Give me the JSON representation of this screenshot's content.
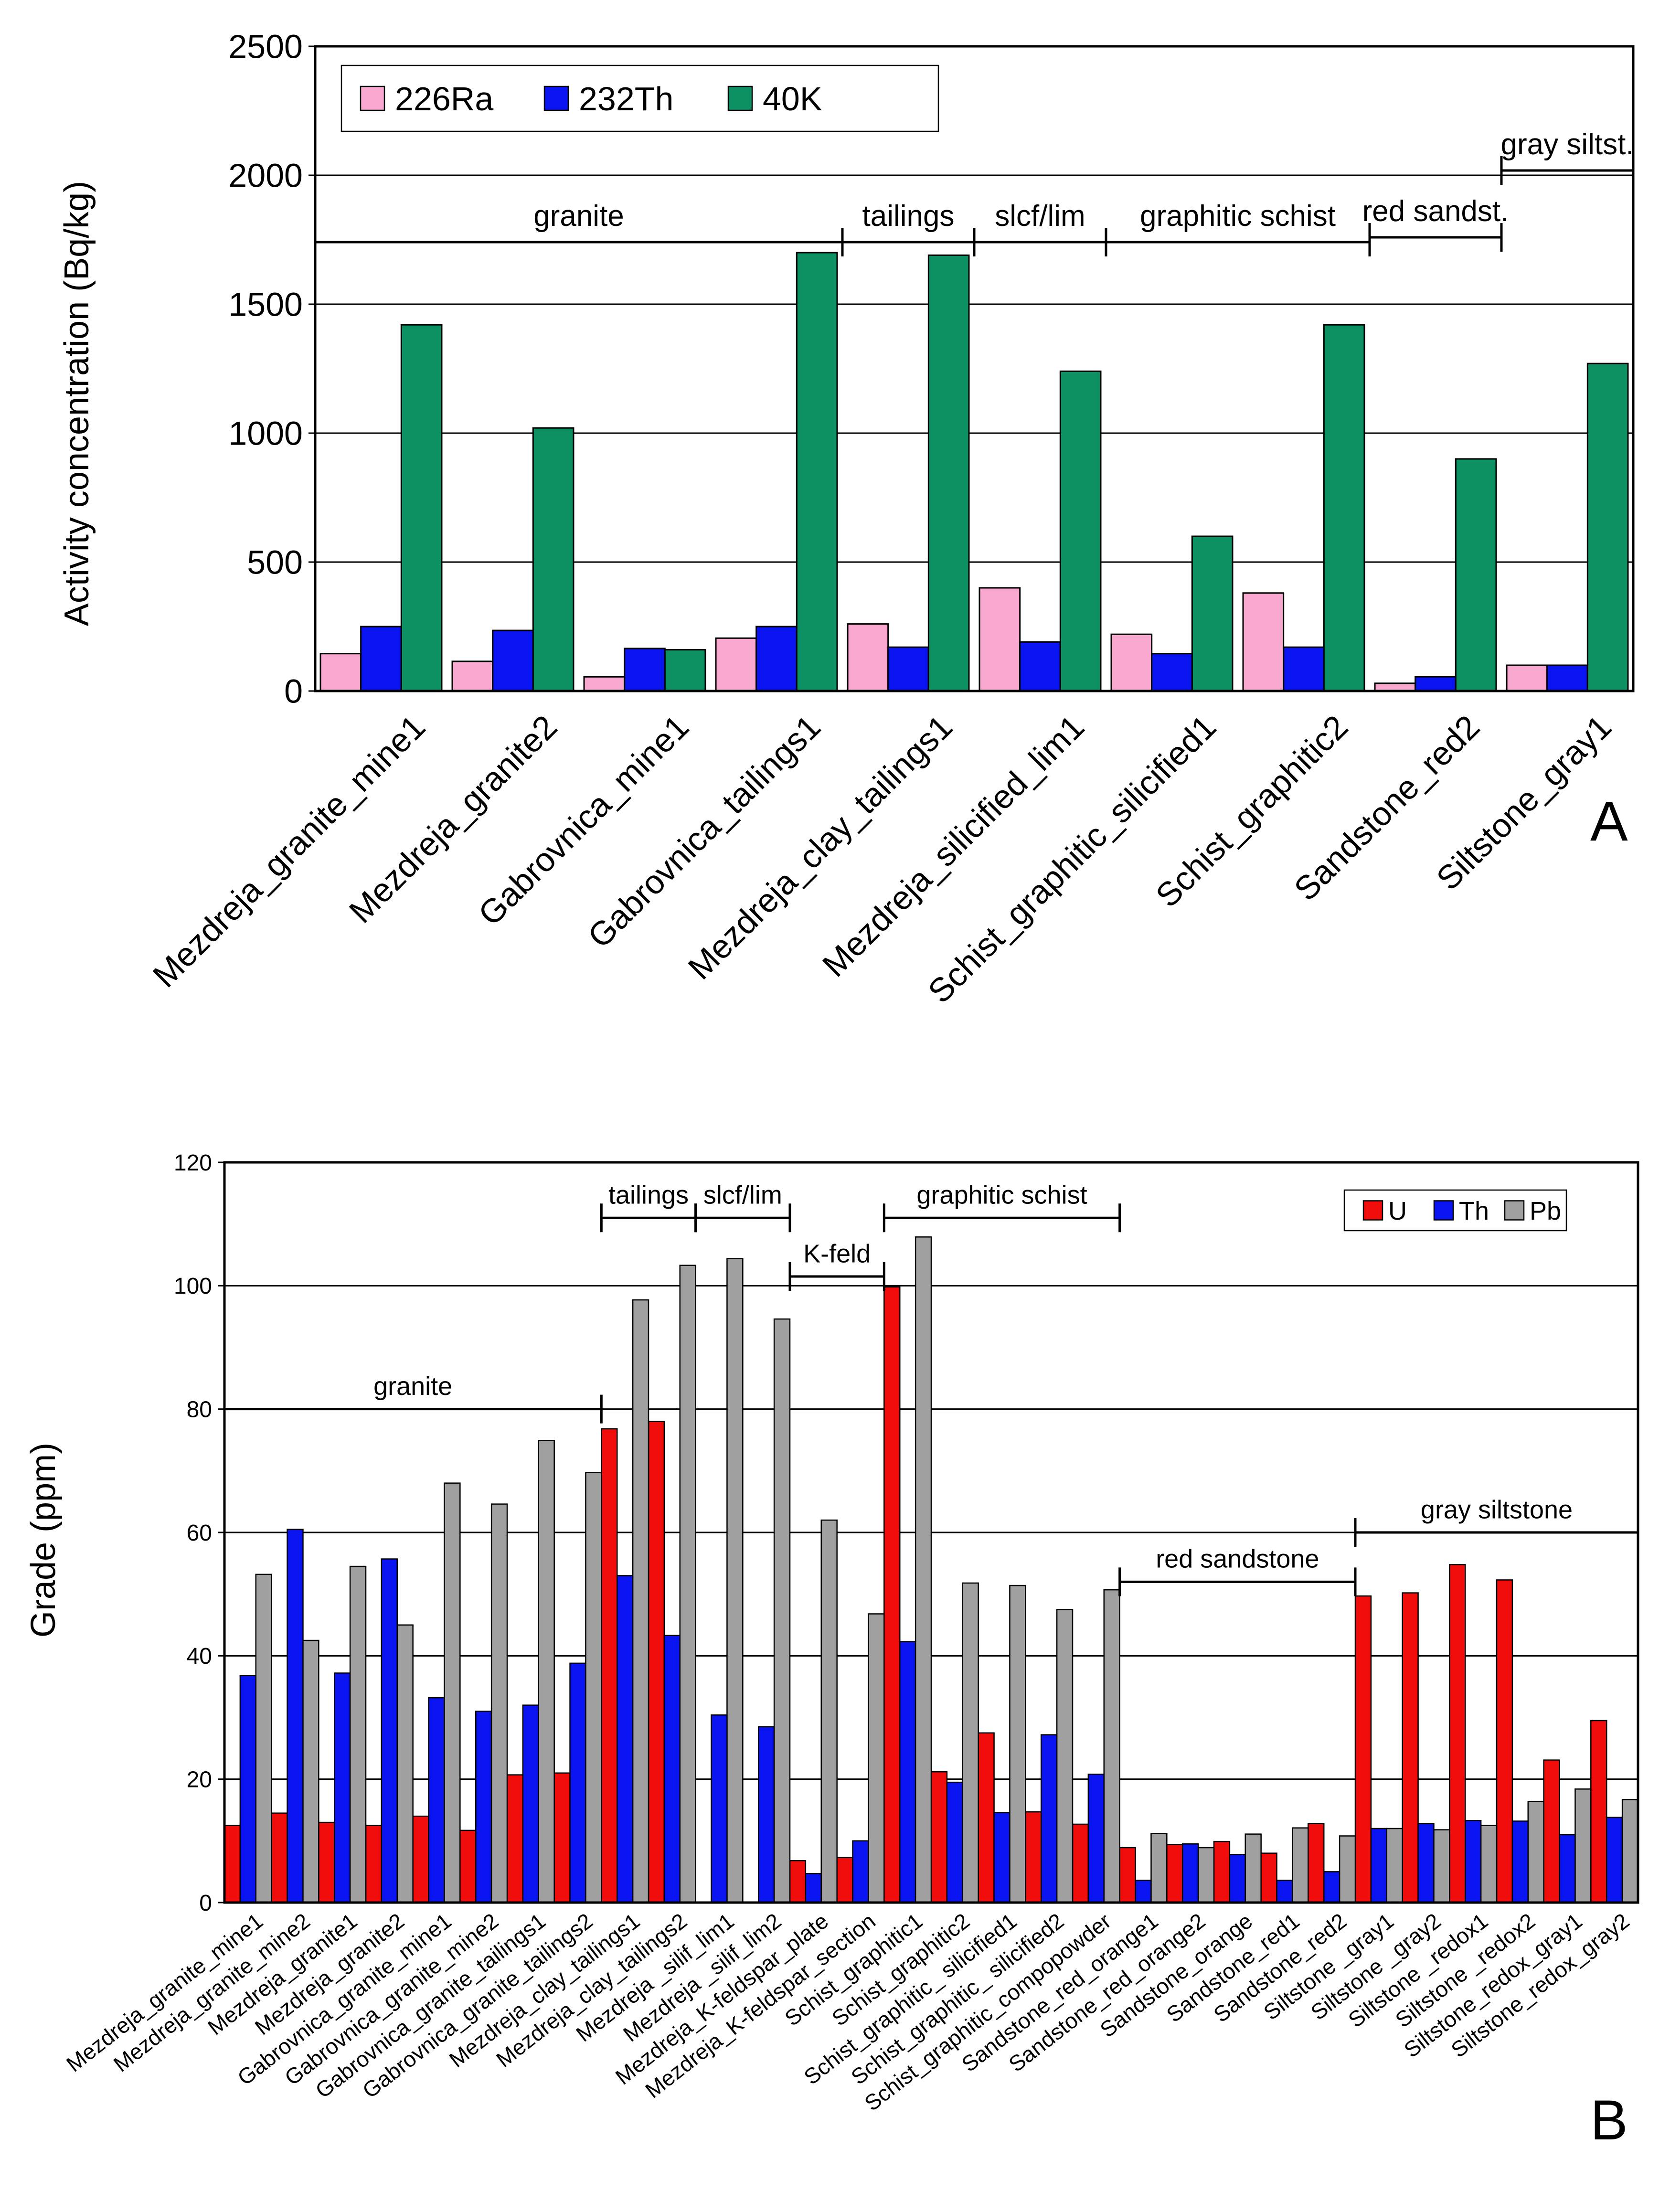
{
  "chart_data": [
    {
      "type": "bar",
      "title": "",
      "panel_label": "A",
      "ylabel": "Activity concentration (Bq/kg)",
      "xlabel": "",
      "ylim": [
        0,
        2500
      ],
      "yticks": [
        0,
        500,
        1000,
        1500,
        2000,
        2500
      ],
      "grid": true,
      "legend_position": "top-left",
      "categories": [
        "Mezdreja_granite_mine1",
        "Mezdreja_granite2",
        "Gabrovnica_mine1",
        "Gabrovnica_tailings1",
        "Mezdreja_clay_tailings1",
        "Mezdreja_silicified_lim1",
        "Schist_graphitic_silicified1",
        "Schist_graphitic2",
        "Sandstone_red2",
        "Siltstone_gray1"
      ],
      "series": [
        {
          "name": "226Ra",
          "color": "#f9a8cf",
          "values": [
            145,
            115,
            55,
            205,
            260,
            400,
            220,
            380,
            30,
            100
          ]
        },
        {
          "name": "232Th",
          "color": "#0a14f0",
          "values": [
            250,
            235,
            165,
            250,
            170,
            190,
            145,
            170,
            55,
            100
          ]
        },
        {
          "name": "40K",
          "color": "#0e9162",
          "values": [
            1420,
            1020,
            160,
            1700,
            1690,
            1240,
            600,
            1420,
            900,
            1270
          ]
        }
      ],
      "groups": [
        {
          "label": "granite",
          "from": 0,
          "to": 4
        },
        {
          "label": "tailings",
          "from": 4,
          "to": 5
        },
        {
          "label": "slcf/lim",
          "from": 5,
          "to": 6
        },
        {
          "label": "graphitic schist",
          "from": 6,
          "to": 8
        },
        {
          "label": "red sandst.",
          "from": 8,
          "to": 9
        },
        {
          "label": "gray siltst.",
          "from": 9,
          "to": 10
        }
      ]
    },
    {
      "type": "bar",
      "title": "",
      "panel_label": "B",
      "ylabel": "Grade (ppm)",
      "xlabel": "",
      "ylim": [
        0,
        120
      ],
      "yticks": [
        0,
        20,
        40,
        60,
        80,
        100,
        120
      ],
      "grid": true,
      "legend_position": "top-right",
      "categories": [
        "Mezdreja_granite_mine1",
        "Mezdreja_granite_mine2",
        "Mezdreja_granite1",
        "Mezdreja_granite2",
        "Gabrovnica_granite_mine1",
        "Gabrovnica_granite_mine2",
        "Gabrovnica_granite_tailings1",
        "Gabrovnica_granite_tailings2",
        "Mezdreja_clay_tailings1",
        "Mezdreja_clay_tailings2",
        "Mezdreja _silif_lim1",
        "Mezdreja _silif_lim2",
        "Mezdreja_K-feldspar_plate",
        "Mezdreja_K-feldspar_section",
        "Schist_graphitic1",
        "Schist_graphitic2",
        "Schist_graphitic_ silicified1",
        "Schist_graphitic_ silicified2",
        "Schist_graphitic_compopowder",
        "Sandstone_red_orange1",
        "Sandstone_red_orange2",
        "Sandstone_orange",
        "Sandstone_red1",
        "Sandstone_red2",
        "Siltstone _gray1",
        "Siltstone _gray2",
        "Siltstone _redox1",
        "Siltstone _redox2",
        "Siltstone_redox_gray1",
        "Siltstone_redox_gray2"
      ],
      "series": [
        {
          "name": "U",
          "color": "#f20d0d",
          "values": [
            12.5,
            14.5,
            13,
            12.5,
            14,
            11.7,
            20.7,
            21,
            76.8,
            78,
            0,
            0,
            6.8,
            7.3,
            99.8,
            21.2,
            27.5,
            14.7,
            12.7,
            8.9,
            9.4,
            9.9,
            8,
            12.8,
            49.7,
            50.2,
            54.8,
            52.3,
            23.1,
            29.5
          ]
        },
        {
          "name": "Th",
          "color": "#0a14f0",
          "values": [
            36.8,
            60.5,
            37.2,
            55.7,
            33.2,
            31,
            32,
            38.8,
            53,
            43.3,
            30.4,
            28.5,
            4.7,
            10,
            42.3,
            19.5,
            14.6,
            27.2,
            20.8,
            3.6,
            9.5,
            7.8,
            3.6,
            5,
            12,
            12.8,
            13.3,
            13.2,
            11,
            13.8
          ]
        },
        {
          "name": "Pb",
          "color": "#a0a0a0",
          "values": [
            53.2,
            42.5,
            54.5,
            45,
            68,
            64.6,
            74.9,
            69.7,
            97.7,
            103.3,
            104.4,
            94.6,
            62,
            46.8,
            107.9,
            51.8,
            51.4,
            47.5,
            50.7,
            11.2,
            8.9,
            11.1,
            12.1,
            10.8,
            12,
            11.8,
            12.5,
            16.4,
            18.4,
            16.7
          ]
        }
      ],
      "groups": [
        {
          "label": "granite",
          "from": 0,
          "to": 8,
          "level": 80
        },
        {
          "label": "tailings",
          "from": 8,
          "to": 10,
          "level": 111
        },
        {
          "label": "slcf/lim",
          "from": 10,
          "to": 12,
          "level": 111
        },
        {
          "label": "K-feld",
          "from": 12,
          "to": 14,
          "level": 101.5
        },
        {
          "label": "graphitic schist",
          "from": 14,
          "to": 19,
          "level": 111
        },
        {
          "label": "red sandstone",
          "from": 19,
          "to": 24,
          "level": 52
        },
        {
          "label": "gray siltstone",
          "from": 24,
          "to": 30,
          "level": 60
        }
      ]
    }
  ]
}
